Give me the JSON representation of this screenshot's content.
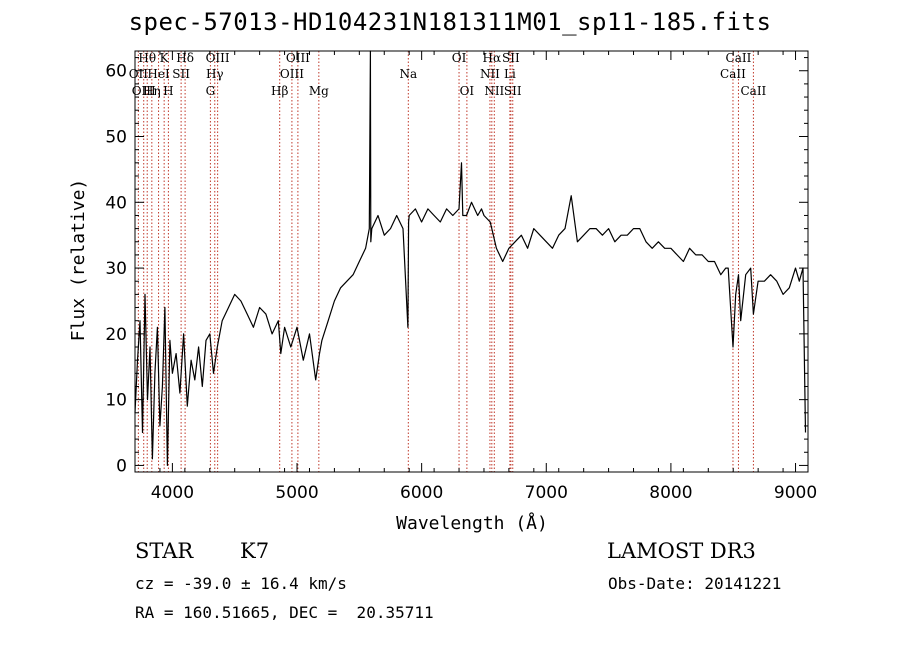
{
  "title": "spec-57013-HD104231N181311M01_sp11-185.fits",
  "footer": {
    "class_label": "STAR",
    "subclass": "K7",
    "survey": "LAMOST DR3",
    "cz": "cz = -39.0 ± 16.4 km/s",
    "obs_date": "Obs-Date: 20141221",
    "coords": "RA = 160.51665, DEC =  20.35711"
  },
  "chart_data": {
    "type": "line",
    "title": "spec-57013-HD104231N181311M01_sp11-185.fits",
    "xlabel": "Wavelength (Å)",
    "ylabel": "Flux (relative)",
    "xlim": [
      3700,
      9100
    ],
    "ylim": [
      -1,
      63
    ],
    "xticks": [
      4000,
      5000,
      6000,
      7000,
      8000,
      9000
    ],
    "yticks": [
      0,
      10,
      20,
      30,
      40,
      50,
      60
    ],
    "spectrum": {
      "x": [
        3700,
        3720,
        3740,
        3760,
        3780,
        3800,
        3820,
        3840,
        3860,
        3880,
        3900,
        3920,
        3940,
        3960,
        3980,
        4000,
        4030,
        4060,
        4090,
        4120,
        4150,
        4180,
        4210,
        4240,
        4270,
        4300,
        4330,
        4360,
        4400,
        4450,
        4500,
        4550,
        4600,
        4650,
        4700,
        4750,
        4800,
        4850,
        4870,
        4900,
        4950,
        5000,
        5050,
        5100,
        5150,
        5180,
        5200,
        5250,
        5300,
        5350,
        5400,
        5450,
        5500,
        5550,
        5580,
        5589,
        5592,
        5600,
        5650,
        5700,
        5750,
        5800,
        5850,
        5890,
        5895,
        5900,
        5950,
        6000,
        6050,
        6100,
        6150,
        6200,
        6250,
        6300,
        6320,
        6330,
        6360,
        6400,
        6450,
        6480,
        6500,
        6550,
        6563,
        6600,
        6650,
        6700,
        6750,
        6800,
        6850,
        6900,
        6950,
        7000,
        7050,
        7100,
        7150,
        7200,
        7250,
        7300,
        7350,
        7400,
        7450,
        7500,
        7550,
        7600,
        7650,
        7700,
        7750,
        7800,
        7850,
        7900,
        7950,
        8000,
        8050,
        8100,
        8150,
        8200,
        8250,
        8300,
        8350,
        8400,
        8440,
        8460,
        8498,
        8520,
        8542,
        8560,
        8600,
        8640,
        8662,
        8700,
        8750,
        8800,
        8850,
        8900,
        8950,
        9000,
        9030,
        9060,
        9080
      ],
      "y": [
        8,
        16,
        22,
        5,
        26,
        10,
        18,
        1,
        14,
        21,
        6,
        12,
        24,
        0,
        19,
        14,
        17,
        11,
        20,
        9,
        16,
        13,
        18,
        12,
        19,
        20,
        14,
        18,
        22,
        24,
        26,
        25,
        23,
        21,
        24,
        23,
        20,
        22,
        17,
        21,
        18,
        21,
        16,
        20,
        13,
        17,
        19,
        22,
        25,
        27,
        28,
        29,
        31,
        33,
        36,
        63,
        34,
        36,
        38,
        35,
        36,
        38,
        36,
        21,
        37,
        38,
        39,
        37,
        39,
        38,
        37,
        39,
        38,
        39,
        46,
        38,
        38,
        40,
        38,
        39,
        38,
        37,
        36,
        33,
        31,
        33,
        34,
        35,
        33,
        36,
        35,
        34,
        33,
        35,
        36,
        41,
        34,
        35,
        36,
        36,
        35,
        36,
        34,
        35,
        35,
        36,
        36,
        34,
        33,
        34,
        33,
        33,
        32,
        31,
        33,
        32,
        32,
        31,
        31,
        29,
        30,
        30,
        18,
        26,
        29,
        22,
        29,
        30,
        23,
        28,
        28,
        29,
        28,
        26,
        27,
        30,
        28,
        30,
        5
      ]
    },
    "lines": [
      {
        "name": "Hθ",
        "wavelength": 3798,
        "row": 1
      },
      {
        "name": "OII",
        "wavelength": 3727,
        "row": 2
      },
      {
        "name": "OIII",
        "wavelength": 3770,
        "row": 3
      },
      {
        "name": "Hη",
        "wavelength": 3835,
        "row": 3
      },
      {
        "name": "K",
        "wavelength": 3934,
        "row": 1
      },
      {
        "name": "HeI",
        "wavelength": 3889,
        "row": 2
      },
      {
        "name": "H",
        "wavelength": 3968,
        "row": 3
      },
      {
        "name": "SII",
        "wavelength": 4070,
        "row": 2
      },
      {
        "name": "Hδ",
        "wavelength": 4102,
        "row": 1
      },
      {
        "name": "OIII",
        "wavelength": 4363,
        "row": 1
      },
      {
        "name": "Hγ",
        "wavelength": 4340,
        "row": 2
      },
      {
        "name": "G",
        "wavelength": 4305,
        "row": 3
      },
      {
        "name": "OIII",
        "wavelength": 5007,
        "row": 1
      },
      {
        "name": "OIII",
        "wavelength": 4959,
        "row": 2
      },
      {
        "name": "Hβ",
        "wavelength": 4861,
        "row": 3
      },
      {
        "name": "Mg",
        "wavelength": 5175,
        "row": 3
      },
      {
        "name": "Na",
        "wavelength": 5893,
        "row": 2
      },
      {
        "name": "OI",
        "wavelength": 6300,
        "row": 1
      },
      {
        "name": "OI",
        "wavelength": 6363,
        "row": 3
      },
      {
        "name": "Hα",
        "wavelength": 6563,
        "row": 1
      },
      {
        "name": "NII",
        "wavelength": 6548,
        "row": 2
      },
      {
        "name": "NII",
        "wavelength": 6583,
        "row": 3
      },
      {
        "name": "SII",
        "wavelength": 6716,
        "row": 1
      },
      {
        "name": "Li",
        "wavelength": 6708,
        "row": 2
      },
      {
        "name": "SII",
        "wavelength": 6731,
        "row": 3
      },
      {
        "name": "CaII",
        "wavelength": 8542,
        "row": 1
      },
      {
        "name": "CaII",
        "wavelength": 8498,
        "row": 2
      },
      {
        "name": "CaII",
        "wavelength": 8662,
        "row": 3
      }
    ]
  }
}
